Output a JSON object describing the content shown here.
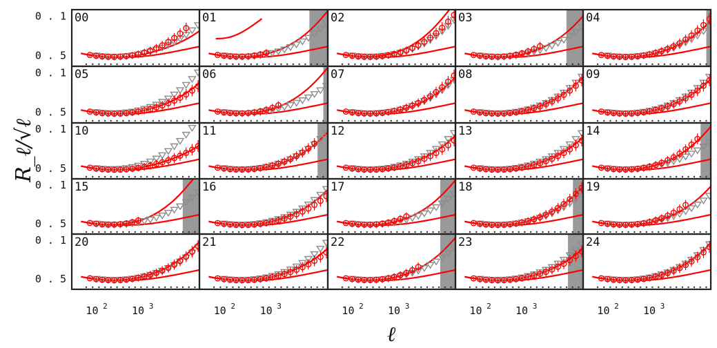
{
  "figure": {
    "ylabel": "R_ℓ/√ℓ",
    "xlabel": "ℓ",
    "x_tick_labels": [
      "10^2",
      "10^3"
    ],
    "y_tick_labels": [
      "0.5",
      "0.1"
    ],
    "colors": {
      "red": "#ff0000",
      "gray": "#8c8c8c",
      "shade": "#999999",
      "frame": "#222222"
    }
  },
  "chart_data": {
    "type": "line",
    "layout": "5x5 small multiples",
    "xscale": "log",
    "yscale": "log",
    "xlim": [
      25,
      15000
    ],
    "ylim": [
      0.065,
      0.65
    ],
    "x_ticks": [
      100,
      1000
    ],
    "y_ticks": [
      0.1,
      0.5
    ],
    "panels": [
      {
        "id": "00",
        "shade": [
          null,
          null
        ],
        "red_points_end": 8000,
        "red_curve_scale": 0.3,
        "gray_scale": 0.6,
        "red_points_scale": 1.25
      },
      {
        "id": "01",
        "shade": [
          6000,
          15000
        ],
        "red_points_end": 800,
        "red_curve_scale": 1.5,
        "gray_scale": 0.7,
        "red_points_scale": 2.5,
        "special": "01"
      },
      {
        "id": "02",
        "shade": [
          null,
          null
        ],
        "red_points_end": 15000,
        "red_curve_scale": 2.5,
        "gray_scale": 0.9,
        "red_points_scale": 1.3
      },
      {
        "id": "03",
        "shade": [
          6500,
          15000
        ],
        "red_points_end": 2000,
        "red_curve_scale": 1.1,
        "gray_scale": 0.5,
        "red_points_scale": 2.0
      },
      {
        "id": "04",
        "shade": [
          12000,
          15000
        ],
        "red_points_end": 15000,
        "red_curve_scale": 0.8,
        "gray_scale": 0.55,
        "red_points_scale": 1.0
      },
      {
        "id": "05",
        "shade": [
          null,
          null
        ],
        "red_points_end": 15000,
        "red_curve_scale": 0.5,
        "gray_scale": 1.2,
        "red_points_scale": 0.4
      },
      {
        "id": "06",
        "shade": [
          12000,
          15000
        ],
        "red_points_end": 1500,
        "red_curve_scale": 1.5,
        "gray_scale": 0.4,
        "red_points_scale": 2.2
      },
      {
        "id": "07",
        "shade": [
          null,
          null
        ],
        "red_points_end": 15000,
        "red_curve_scale": 0.8,
        "gray_scale": 0.7,
        "red_points_scale": 1.0
      },
      {
        "id": "08",
        "shade": [
          null,
          null
        ],
        "red_points_end": 15000,
        "red_curve_scale": 0.8,
        "gray_scale": 0.9,
        "red_points_scale": 0.7
      },
      {
        "id": "09",
        "shade": [
          null,
          null
        ],
        "red_points_end": 15000,
        "red_curve_scale": 0.7,
        "gray_scale": 0.9,
        "red_points_scale": 0.7
      },
      {
        "id": "10",
        "shade": [
          null,
          null
        ],
        "red_points_end": 15000,
        "red_curve_scale": 0.25,
        "gray_scale": 2.0,
        "red_points_scale": 0.25
      },
      {
        "id": "11",
        "shade": [
          9000,
          15000
        ],
        "red_points_end": 8000,
        "red_curve_scale": 0.9,
        "gray_scale": 0.9,
        "red_points_scale": 1.0
      },
      {
        "id": "12",
        "shade": [
          null,
          null
        ],
        "red_points_end": 15000,
        "red_curve_scale": 0.7,
        "gray_scale": 0.9,
        "red_points_scale": 0.5
      },
      {
        "id": "13",
        "shade": [
          null,
          null
        ],
        "red_points_end": 15000,
        "red_curve_scale": 0.6,
        "gray_scale": 0.9,
        "red_points_scale": 0.5
      },
      {
        "id": "14",
        "shade": [
          9000,
          15000
        ],
        "red_points_end": 8000,
        "red_curve_scale": 1.3,
        "gray_scale": 0.4,
        "red_points_scale": 1.5
      },
      {
        "id": "15",
        "shade": [
          6500,
          15000
        ],
        "red_points_end": 900,
        "red_curve_scale": 2.5,
        "gray_scale": 0.7,
        "red_points_scale": 3.0
      },
      {
        "id": "16",
        "shade": [
          null,
          null
        ],
        "red_points_end": 15000,
        "red_curve_scale": 0.8,
        "gray_scale": 0.9,
        "red_points_scale": 0.5
      },
      {
        "id": "17",
        "shade": [
          7000,
          15000
        ],
        "red_points_end": 1300,
        "red_curve_scale": 1.5,
        "gray_scale": 0.6,
        "red_points_scale": 2.5
      },
      {
        "id": "18",
        "shade": [
          9000,
          15000
        ],
        "red_points_end": 15000,
        "red_curve_scale": 1.0,
        "gray_scale": 0.6,
        "red_points_scale": 1.0
      },
      {
        "id": "19",
        "shade": [
          null,
          null
        ],
        "red_points_end": 4500,
        "red_curve_scale": 1.0,
        "gray_scale": 0.5,
        "red_points_scale": 1.5
      },
      {
        "id": "20",
        "shade": [
          null,
          null
        ],
        "red_points_end": 15000,
        "red_curve_scale": 1.0,
        "gray_scale": 0.7,
        "red_points_scale": 0.8
      },
      {
        "id": "21",
        "shade": [
          null,
          null
        ],
        "red_points_end": 15000,
        "red_curve_scale": 0.6,
        "gray_scale": 1.0,
        "red_points_scale": 0.45
      },
      {
        "id": "22",
        "shade": [
          7000,
          15000
        ],
        "red_points_end": 3000,
        "red_curve_scale": 1.3,
        "gray_scale": 0.7,
        "red_points_scale": 1.8
      },
      {
        "id": "23",
        "shade": [
          7000,
          15000
        ],
        "red_points_end": 15000,
        "red_curve_scale": 0.6,
        "gray_scale": 0.9,
        "red_points_scale": 0.5
      },
      {
        "id": "24",
        "shade": [
          null,
          null
        ],
        "red_points_end": 15000,
        "red_curve_scale": 0.9,
        "gray_scale": 0.9,
        "red_points_scale": 0.75
      }
    ]
  }
}
